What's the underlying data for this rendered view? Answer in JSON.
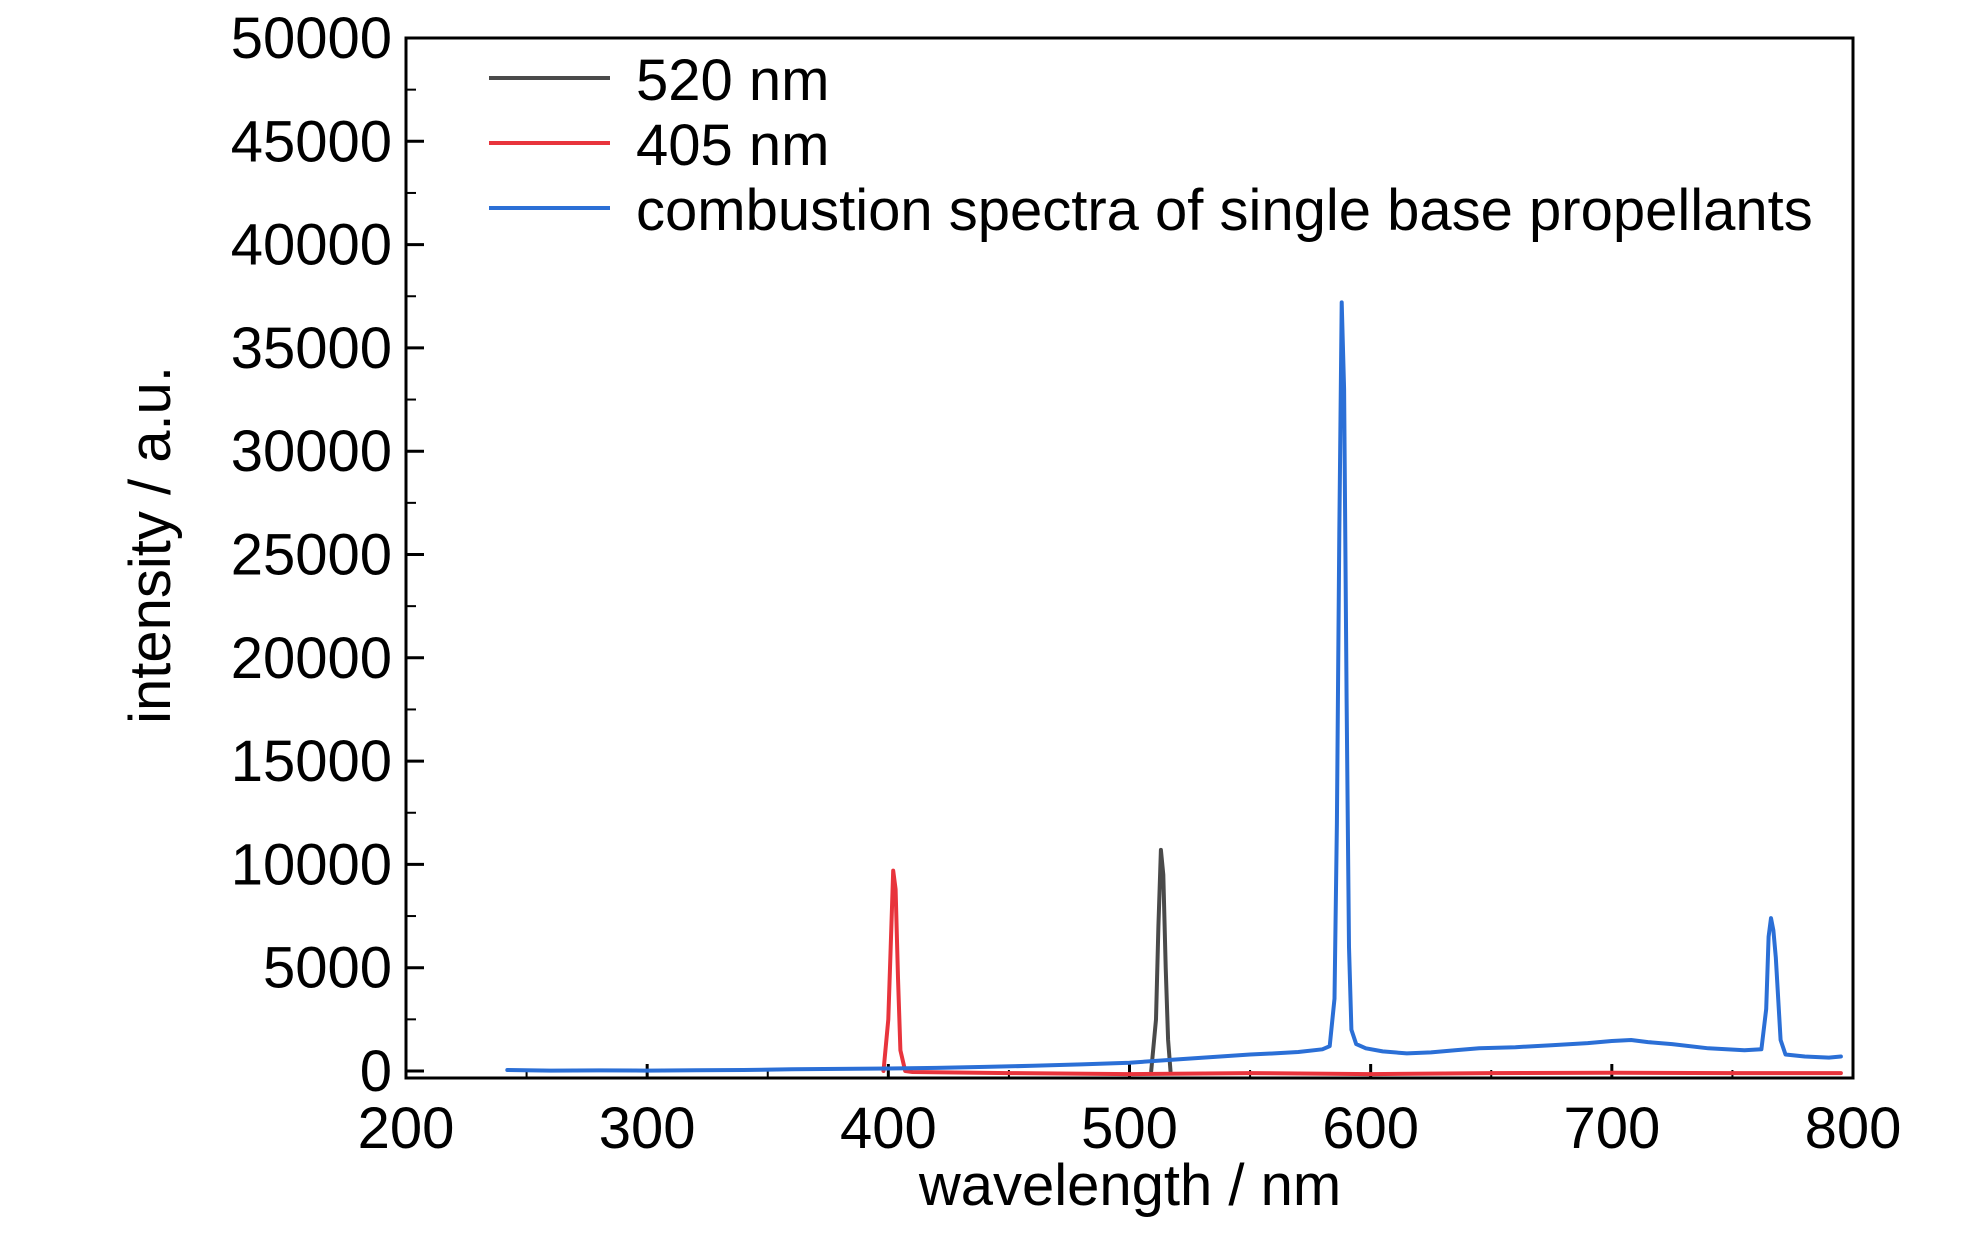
{
  "chart_data": {
    "type": "line",
    "title": "",
    "xlabel": "wavelength / nm",
    "ylabel": "intensity / a.u.",
    "xlim": [
      200,
      800
    ],
    "ylim": [
      0,
      50000
    ],
    "xticks": [
      200,
      300,
      400,
      500,
      600,
      700,
      800
    ],
    "yticks": [
      0,
      5000,
      10000,
      15000,
      20000,
      25000,
      30000,
      35000,
      40000,
      45000,
      50000
    ],
    "grid": false,
    "legend_position": "top-left",
    "series": [
      {
        "name": "520 nm",
        "color": "#4a4a4a",
        "x": [
          509,
          511,
          512,
          513,
          514,
          515,
          516,
          517
        ],
        "y": [
          0,
          2500,
          7000,
          10700,
          9500,
          5000,
          1500,
          0
        ]
      },
      {
        "name": "405 nm",
        "color": "#e8343c",
        "x": [
          398,
          400,
          401,
          402,
          403,
          404,
          405,
          407,
          410,
          450,
          500,
          550,
          600,
          650,
          700,
          750,
          795
        ],
        "y": [
          0,
          2500,
          6000,
          9700,
          8800,
          4500,
          1000,
          0,
          -50,
          -100,
          -150,
          -100,
          -150,
          -100,
          -80,
          -100,
          -100
        ]
      },
      {
        "name": "combustion spectra of single base propellants",
        "color": "#2b6fd6",
        "x": [
          242,
          260,
          280,
          300,
          320,
          340,
          360,
          380,
          400,
          420,
          440,
          460,
          480,
          500,
          520,
          530,
          540,
          550,
          560,
          570,
          580,
          583,
          585,
          586,
          587,
          588,
          589,
          590,
          591,
          592,
          594,
          598,
          605,
          615,
          625,
          635,
          645,
          660,
          675,
          690,
          700,
          708,
          715,
          725,
          740,
          755,
          762,
          764,
          765,
          766,
          767,
          768,
          769,
          770,
          772,
          780,
          790,
          795
        ],
        "y": [
          50,
          20,
          30,
          20,
          40,
          50,
          80,
          100,
          120,
          150,
          200,
          250,
          320,
          400,
          560,
          640,
          720,
          800,
          850,
          920,
          1050,
          1200,
          3500,
          12000,
          26000,
          37200,
          33000,
          18000,
          6000,
          2000,
          1300,
          1100,
          950,
          850,
          900,
          1000,
          1100,
          1150,
          1250,
          1350,
          1450,
          1500,
          1400,
          1300,
          1100,
          1000,
          1050,
          3000,
          6500,
          7400,
          6800,
          5500,
          3500,
          1500,
          800,
          700,
          650,
          700
        ]
      }
    ]
  }
}
